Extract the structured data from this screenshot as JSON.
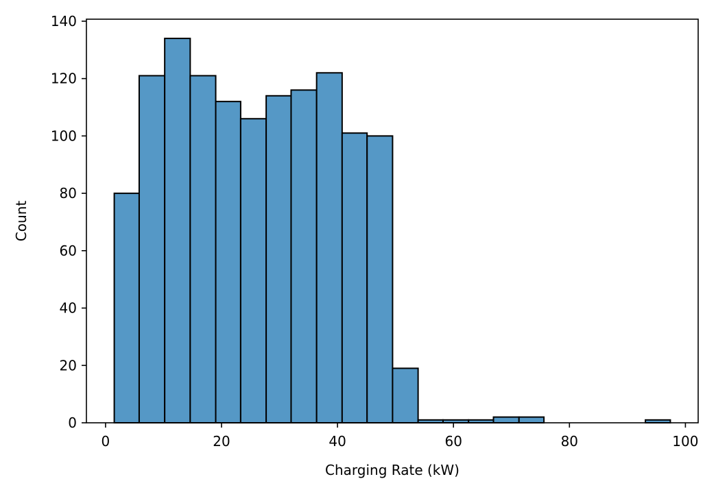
{
  "chart_data": {
    "type": "bar",
    "xlabel": "Charging Rate (kW)",
    "ylabel": "Count",
    "xlim": [
      -3.3,
      102.2
    ],
    "ylim": [
      0,
      140.7
    ],
    "x_ticks": [
      0,
      20,
      40,
      60,
      80,
      100
    ],
    "y_ticks": [
      0,
      20,
      40,
      60,
      80,
      100,
      120,
      140
    ],
    "grid": false,
    "bar_color": "#5598c6",
    "edge_color": "#000000",
    "bins": [
      {
        "x0": 1.5,
        "x1": 5.8,
        "value": 80
      },
      {
        "x0": 5.8,
        "x1": 10.2,
        "value": 121
      },
      {
        "x0": 10.2,
        "x1": 14.6,
        "value": 134
      },
      {
        "x0": 14.6,
        "x1": 19.0,
        "value": 121
      },
      {
        "x0": 19.0,
        "x1": 23.3,
        "value": 112
      },
      {
        "x0": 23.3,
        "x1": 27.7,
        "value": 106
      },
      {
        "x0": 27.7,
        "x1": 32.0,
        "value": 114
      },
      {
        "x0": 32.0,
        "x1": 36.4,
        "value": 116
      },
      {
        "x0": 36.4,
        "x1": 40.8,
        "value": 122
      },
      {
        "x0": 40.8,
        "x1": 45.1,
        "value": 101
      },
      {
        "x0": 45.1,
        "x1": 49.5,
        "value": 100
      },
      {
        "x0": 49.5,
        "x1": 53.9,
        "value": 19
      },
      {
        "x0": 53.9,
        "x1": 58.2,
        "value": 1
      },
      {
        "x0": 58.2,
        "x1": 62.6,
        "value": 1
      },
      {
        "x0": 62.6,
        "x1": 66.9,
        "value": 1
      },
      {
        "x0": 66.9,
        "x1": 71.3,
        "value": 2
      },
      {
        "x0": 71.3,
        "x1": 75.6,
        "value": 2
      },
      {
        "x0": 75.6,
        "x1": 80.0,
        "value": 0
      },
      {
        "x0": 80.0,
        "x1": 84.4,
        "value": 0
      },
      {
        "x0": 84.4,
        "x1": 88.7,
        "value": 0
      },
      {
        "x0": 88.7,
        "x1": 93.1,
        "value": 0
      },
      {
        "x0": 93.1,
        "x1": 97.4,
        "value": 1
      }
    ]
  }
}
